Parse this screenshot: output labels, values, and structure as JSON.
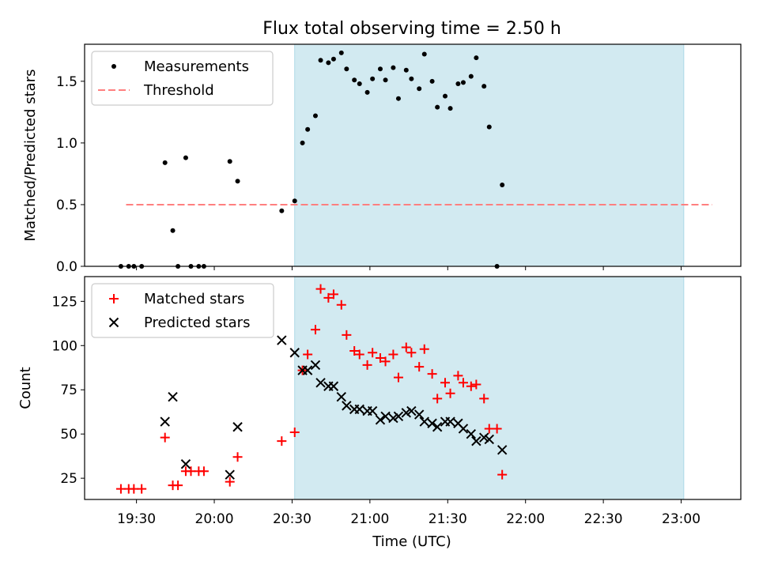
{
  "title": "Flux total observing time = 2.50 h",
  "xlabel": "Time (UTC)",
  "xticks": [
    "19:30",
    "20:00",
    "20:30",
    "21:00",
    "21:30",
    "22:00",
    "22:30",
    "23:00"
  ],
  "xtick_minutes": [
    1170,
    1200,
    1230,
    1260,
    1290,
    1320,
    1350,
    1380
  ],
  "colors": {
    "span": "#add8e6",
    "threshold": "#ff7f7f",
    "measurements": "#000000",
    "matched": "#ff0000",
    "predicted": "#000000"
  },
  "chart_data": [
    {
      "type": "scatter",
      "ylabel": "Matched/Predicted stars",
      "yticks": [
        "0.0",
        "0.5",
        "1.0",
        "1.5"
      ],
      "ytick_values": [
        0.0,
        0.5,
        1.0,
        1.5
      ],
      "xlim": [
        "19:10",
        "23:23"
      ],
      "ylim": [
        0,
        1.8
      ],
      "legend": {
        "position": "top-left",
        "entries": [
          "Measurements",
          "Threshold"
        ]
      },
      "shaded_span": [
        "20:31",
        "23:01"
      ],
      "threshold": {
        "name": "Threshold",
        "y": 0.5,
        "x_range": [
          "19:26",
          "23:12"
        ]
      },
      "series": [
        {
          "name": "Measurements",
          "marker": "dot",
          "points": [
            [
              "19:24",
              0.0
            ],
            [
              "19:27",
              0.0
            ],
            [
              "19:29",
              0.0
            ],
            [
              "19:32",
              0.0
            ],
            [
              "19:41",
              0.84
            ],
            [
              "19:44",
              0.29
            ],
            [
              "19:46",
              0.0
            ],
            [
              "19:49",
              0.88
            ],
            [
              "19:51",
              0.0
            ],
            [
              "19:54",
              0.0
            ],
            [
              "19:56",
              0.0
            ],
            [
              "20:06",
              0.85
            ],
            [
              "20:09",
              0.69
            ],
            [
              "20:26",
              0.45
            ],
            [
              "20:31",
              0.53
            ],
            [
              "20:34",
              1.0
            ],
            [
              "20:36",
              1.11
            ],
            [
              "20:39",
              1.22
            ],
            [
              "20:41",
              1.67
            ],
            [
              "20:44",
              1.65
            ],
            [
              "20:46",
              1.68
            ],
            [
              "20:49",
              1.73
            ],
            [
              "20:51",
              1.6
            ],
            [
              "20:54",
              1.51
            ],
            [
              "20:56",
              1.48
            ],
            [
              "20:59",
              1.41
            ],
            [
              "21:01",
              1.52
            ],
            [
              "21:04",
              1.6
            ],
            [
              "21:06",
              1.51
            ],
            [
              "21:09",
              1.61
            ],
            [
              "21:11",
              1.36
            ],
            [
              "21:14",
              1.59
            ],
            [
              "21:16",
              1.52
            ],
            [
              "21:19",
              1.44
            ],
            [
              "21:21",
              1.72
            ],
            [
              "21:24",
              1.5
            ],
            [
              "21:26",
              1.29
            ],
            [
              "21:29",
              1.38
            ],
            [
              "21:31",
              1.28
            ],
            [
              "21:34",
              1.48
            ],
            [
              "21:36",
              1.49
            ],
            [
              "21:39",
              1.54
            ],
            [
              "21:41",
              1.69
            ],
            [
              "21:44",
              1.46
            ],
            [
              "21:46",
              1.13
            ],
            [
              "21:49",
              0.0
            ],
            [
              "21:51",
              0.66
            ]
          ]
        }
      ]
    },
    {
      "type": "scatter",
      "ylabel": "Count",
      "yticks": [
        "25",
        "50",
        "75",
        "100",
        "125"
      ],
      "ytick_values": [
        25,
        50,
        75,
        100,
        125
      ],
      "xlim": [
        "19:10",
        "23:23"
      ],
      "ylim": [
        13,
        139
      ],
      "legend": {
        "position": "top-left",
        "entries": [
          "Matched stars",
          "Predicted stars"
        ]
      },
      "shaded_span": [
        "20:31",
        "23:01"
      ],
      "series": [
        {
          "name": "Matched stars",
          "marker": "plus",
          "points": [
            [
              "19:24",
              19
            ],
            [
              "19:27",
              19
            ],
            [
              "19:29",
              19
            ],
            [
              "19:32",
              19
            ],
            [
              "19:41",
              48
            ],
            [
              "19:44",
              21
            ],
            [
              "19:46",
              21
            ],
            [
              "19:49",
              29
            ],
            [
              "19:51",
              29
            ],
            [
              "19:54",
              29
            ],
            [
              "19:56",
              29
            ],
            [
              "20:06",
              23
            ],
            [
              "20:09",
              37
            ],
            [
              "20:26",
              46
            ],
            [
              "20:31",
              51
            ],
            [
              "20:34",
              86
            ],
            [
              "20:36",
              95
            ],
            [
              "20:39",
              109
            ],
            [
              "20:41",
              132
            ],
            [
              "20:44",
              127
            ],
            [
              "20:46",
              129
            ],
            [
              "20:49",
              123
            ],
            [
              "20:51",
              106
            ],
            [
              "20:54",
              97
            ],
            [
              "20:56",
              95
            ],
            [
              "20:59",
              89
            ],
            [
              "21:01",
              96
            ],
            [
              "21:04",
              93
            ],
            [
              "21:06",
              91
            ],
            [
              "21:09",
              95
            ],
            [
              "21:11",
              82
            ],
            [
              "21:14",
              99
            ],
            [
              "21:16",
              96
            ],
            [
              "21:19",
              88
            ],
            [
              "21:21",
              98
            ],
            [
              "21:24",
              84
            ],
            [
              "21:26",
              70
            ],
            [
              "21:29",
              79
            ],
            [
              "21:31",
              73
            ],
            [
              "21:34",
              83
            ],
            [
              "21:36",
              79
            ],
            [
              "21:39",
              77
            ],
            [
              "21:41",
              78
            ],
            [
              "21:44",
              70
            ],
            [
              "21:46",
              53
            ],
            [
              "21:49",
              53
            ],
            [
              "21:51",
              27
            ]
          ]
        },
        {
          "name": "Predicted stars",
          "marker": "x",
          "points": [
            [
              "19:41",
              57
            ],
            [
              "19:44",
              71
            ],
            [
              "19:49",
              33
            ],
            [
              "20:06",
              27
            ],
            [
              "20:09",
              54
            ],
            [
              "20:26",
              103
            ],
            [
              "20:31",
              96
            ],
            [
              "20:34",
              86
            ],
            [
              "20:36",
              86
            ],
            [
              "20:39",
              89
            ],
            [
              "20:41",
              79
            ],
            [
              "20:44",
              77
            ],
            [
              "20:46",
              77
            ],
            [
              "20:49",
              71
            ],
            [
              "20:51",
              66
            ],
            [
              "20:54",
              64
            ],
            [
              "20:56",
              64
            ],
            [
              "20:59",
              63
            ],
            [
              "21:01",
              63
            ],
            [
              "21:04",
              58
            ],
            [
              "21:06",
              60
            ],
            [
              "21:09",
              59
            ],
            [
              "21:11",
              60
            ],
            [
              "21:14",
              62
            ],
            [
              "21:16",
              63
            ],
            [
              "21:19",
              61
            ],
            [
              "21:21",
              57
            ],
            [
              "21:24",
              56
            ],
            [
              "21:26",
              54
            ],
            [
              "21:29",
              57
            ],
            [
              "21:31",
              57
            ],
            [
              "21:34",
              56
            ],
            [
              "21:36",
              53
            ],
            [
              "21:39",
              50
            ],
            [
              "21:41",
              46
            ],
            [
              "21:44",
              48
            ],
            [
              "21:46",
              47
            ],
            [
              "21:51",
              41
            ]
          ]
        }
      ]
    }
  ]
}
